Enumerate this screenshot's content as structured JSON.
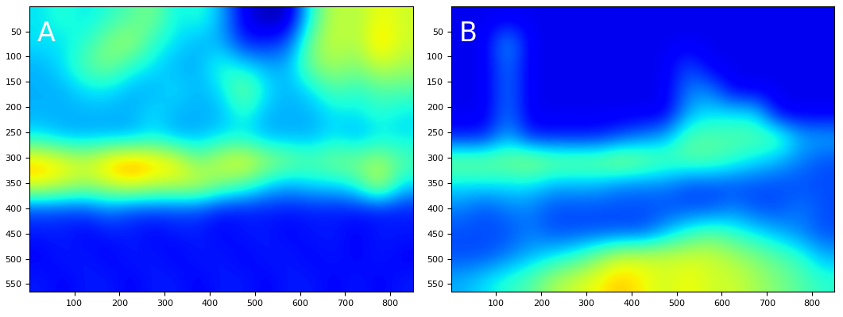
{
  "chart_data": [
    {
      "type": "heatmap",
      "annotation": "A",
      "xlim": [
        0.5,
        850
      ],
      "ylim": [
        565,
        0.5
      ],
      "xticks": [
        100,
        200,
        300,
        400,
        500,
        600,
        700,
        800
      ],
      "yticks": [
        50,
        100,
        150,
        200,
        250,
        300,
        350,
        400,
        450,
        500,
        550
      ],
      "clim": [
        0,
        1
      ],
      "cells": [
        [
          0.35,
          0.4,
          0.35,
          0.4,
          0.45,
          0.5,
          0.35,
          0.4,
          0.3,
          0.1,
          0.05,
          0.05,
          0.4,
          0.6,
          0.55,
          0.65,
          0.6
        ],
        [
          0.35,
          0.35,
          0.4,
          0.5,
          0.55,
          0.4,
          0.35,
          0.3,
          0.3,
          0.15,
          0.15,
          0.2,
          0.5,
          0.6,
          0.55,
          0.7,
          0.6
        ],
        [
          0.3,
          0.35,
          0.45,
          0.5,
          0.4,
          0.35,
          0.3,
          0.3,
          0.4,
          0.35,
          0.3,
          0.3,
          0.5,
          0.55,
          0.5,
          0.6,
          0.55
        ],
        [
          0.3,
          0.3,
          0.35,
          0.35,
          0.3,
          0.3,
          0.35,
          0.3,
          0.35,
          0.5,
          0.35,
          0.3,
          0.35,
          0.45,
          0.4,
          0.45,
          0.45
        ],
        [
          0.3,
          0.3,
          0.3,
          0.3,
          0.3,
          0.35,
          0.3,
          0.3,
          0.3,
          0.4,
          0.3,
          0.3,
          0.3,
          0.35,
          0.35,
          0.4,
          0.35
        ],
        [
          0.35,
          0.3,
          0.3,
          0.3,
          0.3,
          0.35,
          0.3,
          0.3,
          0.35,
          0.35,
          0.3,
          0.3,
          0.3,
          0.35,
          0.3,
          0.35,
          0.35
        ],
        [
          0.7,
          0.65,
          0.6,
          0.7,
          0.75,
          0.7,
          0.65,
          0.5,
          0.6,
          0.65,
          0.55,
          0.5,
          0.45,
          0.5,
          0.5,
          0.55,
          0.45
        ],
        [
          0.65,
          0.6,
          0.55,
          0.6,
          0.65,
          0.6,
          0.6,
          0.6,
          0.5,
          0.45,
          0.35,
          0.3,
          0.35,
          0.35,
          0.4,
          0.6,
          0.35
        ],
        [
          0.2,
          0.2,
          0.2,
          0.25,
          0.2,
          0.2,
          0.2,
          0.2,
          0.15,
          0.15,
          0.15,
          0.15,
          0.15,
          0.15,
          0.15,
          0.15,
          0.15
        ],
        [
          0.15,
          0.15,
          0.12,
          0.15,
          0.15,
          0.12,
          0.15,
          0.15,
          0.12,
          0.15,
          0.15,
          0.12,
          0.15,
          0.15,
          0.12,
          0.15,
          0.15
        ],
        [
          0.12,
          0.15,
          0.15,
          0.12,
          0.15,
          0.15,
          0.12,
          0.15,
          0.15,
          0.12,
          0.15,
          0.15,
          0.12,
          0.15,
          0.12,
          0.15,
          0.12
        ],
        [
          0.15,
          0.12,
          0.15,
          0.15,
          0.12,
          0.15,
          0.15,
          0.12,
          0.15,
          0.15,
          0.12,
          0.15,
          0.15,
          0.12,
          0.15,
          0.12,
          0.15
        ]
      ]
    },
    {
      "type": "heatmap",
      "annotation": "B",
      "xlim": [
        0.5,
        850
      ],
      "ylim": [
        565,
        0.5
      ],
      "xticks": [
        100,
        200,
        300,
        400,
        500,
        600,
        700,
        800
      ],
      "yticks": [
        50,
        100,
        150,
        200,
        250,
        300,
        350,
        400,
        450,
        500,
        550
      ],
      "clim": [
        0,
        1
      ],
      "cells": [
        [
          0.1,
          0.1,
          0.1,
          0.1,
          0.1,
          0.1,
          0.1,
          0.1,
          0.1,
          0.1,
          0.1,
          0.1,
          0.1,
          0.1,
          0.1,
          0.1,
          0.1
        ],
        [
          0.1,
          0.1,
          0.3,
          0.1,
          0.1,
          0.1,
          0.1,
          0.1,
          0.1,
          0.1,
          0.1,
          0.1,
          0.1,
          0.1,
          0.1,
          0.1,
          0.1
        ],
        [
          0.1,
          0.1,
          0.25,
          0.1,
          0.1,
          0.1,
          0.1,
          0.1,
          0.1,
          0.1,
          0.2,
          0.1,
          0.1,
          0.1,
          0.1,
          0.1,
          0.1
        ],
        [
          0.1,
          0.1,
          0.25,
          0.1,
          0.1,
          0.1,
          0.1,
          0.1,
          0.1,
          0.1,
          0.25,
          0.25,
          0.1,
          0.1,
          0.1,
          0.1,
          0.1
        ],
        [
          0.1,
          0.1,
          0.25,
          0.1,
          0.1,
          0.1,
          0.1,
          0.1,
          0.1,
          0.1,
          0.3,
          0.35,
          0.35,
          0.35,
          0.1,
          0.1,
          0.1
        ],
        [
          0.15,
          0.15,
          0.3,
          0.15,
          0.15,
          0.15,
          0.15,
          0.2,
          0.25,
          0.3,
          0.45,
          0.45,
          0.45,
          0.45,
          0.45,
          0.3,
          0.3
        ],
        [
          0.5,
          0.5,
          0.5,
          0.55,
          0.5,
          0.5,
          0.5,
          0.55,
          0.5,
          0.45,
          0.45,
          0.45,
          0.4,
          0.35,
          0.3,
          0.25,
          0.2
        ],
        [
          0.35,
          0.35,
          0.35,
          0.35,
          0.3,
          0.3,
          0.3,
          0.25,
          0.25,
          0.25,
          0.2,
          0.2,
          0.2,
          0.2,
          0.2,
          0.2,
          0.2
        ],
        [
          0.25,
          0.2,
          0.25,
          0.25,
          0.2,
          0.2,
          0.2,
          0.2,
          0.2,
          0.2,
          0.2,
          0.2,
          0.25,
          0.2,
          0.2,
          0.25,
          0.2
        ],
        [
          0.2,
          0.2,
          0.2,
          0.25,
          0.2,
          0.2,
          0.2,
          0.2,
          0.2,
          0.3,
          0.4,
          0.45,
          0.4,
          0.35,
          0.3,
          0.25,
          0.2
        ],
        [
          0.2,
          0.2,
          0.25,
          0.3,
          0.35,
          0.4,
          0.5,
          0.6,
          0.6,
          0.6,
          0.6,
          0.6,
          0.55,
          0.5,
          0.45,
          0.4,
          0.3
        ],
        [
          0.3,
          0.35,
          0.4,
          0.45,
          0.55,
          0.6,
          0.65,
          0.7,
          0.65,
          0.6,
          0.65,
          0.6,
          0.6,
          0.55,
          0.5,
          0.45,
          0.4
        ]
      ]
    }
  ]
}
